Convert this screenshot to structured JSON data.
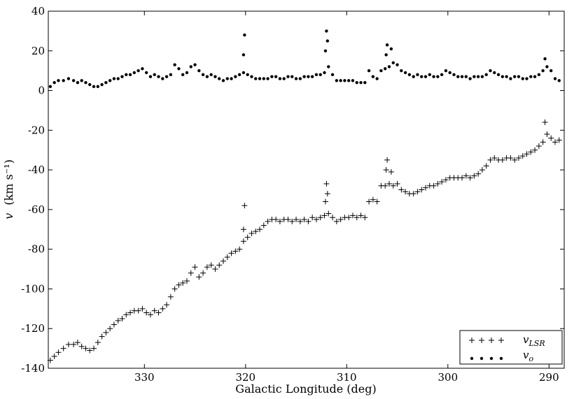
{
  "chart_data": {
    "type": "scatter",
    "title": "",
    "xlabel": "Galactic Longitude (deg)",
    "ylabel": "v",
    "ylabel_unit": "(km s⁻¹)",
    "xlim": [
      339.5,
      288.5
    ],
    "ylim": [
      -140,
      40
    ],
    "x_reversed": true,
    "grid": false,
    "legend_position": "bottom-right",
    "x_ticks": [
      330,
      320,
      310,
      300,
      290
    ],
    "y_ticks": [
      -140,
      -120,
      -100,
      -80,
      -60,
      -40,
      -20,
      0,
      20,
      40
    ],
    "series": [
      {
        "name": "v_LSR",
        "marker": "plus",
        "color": "#000000",
        "points": [
          [
            339.3,
            -136
          ],
          [
            338.9,
            -134
          ],
          [
            338.5,
            -132
          ],
          [
            338.0,
            -130
          ],
          [
            337.5,
            -128
          ],
          [
            337.0,
            -128
          ],
          [
            336.6,
            -127
          ],
          [
            336.2,
            -129
          ],
          [
            335.8,
            -130
          ],
          [
            335.4,
            -131
          ],
          [
            335.0,
            -130
          ],
          [
            334.6,
            -127
          ],
          [
            334.2,
            -124
          ],
          [
            333.8,
            -122
          ],
          [
            333.4,
            -120
          ],
          [
            333.0,
            -118
          ],
          [
            332.6,
            -116
          ],
          [
            332.2,
            -115
          ],
          [
            331.8,
            -113
          ],
          [
            331.4,
            -112
          ],
          [
            331.0,
            -111
          ],
          [
            330.6,
            -111
          ],
          [
            330.2,
            -110
          ],
          [
            329.8,
            -112
          ],
          [
            329.4,
            -113
          ],
          [
            329.0,
            -111
          ],
          [
            328.6,
            -112
          ],
          [
            328.2,
            -110
          ],
          [
            327.8,
            -108
          ],
          [
            327.4,
            -104
          ],
          [
            327.0,
            -100
          ],
          [
            326.6,
            -98
          ],
          [
            326.2,
            -97
          ],
          [
            325.8,
            -96
          ],
          [
            325.4,
            -92
          ],
          [
            325.0,
            -89
          ],
          [
            324.6,
            -94
          ],
          [
            324.2,
            -92
          ],
          [
            323.8,
            -89
          ],
          [
            323.4,
            -88
          ],
          [
            323.0,
            -90
          ],
          [
            322.6,
            -88
          ],
          [
            322.2,
            -86
          ],
          [
            321.8,
            -84
          ],
          [
            321.4,
            -82
          ],
          [
            321.0,
            -81
          ],
          [
            320.6,
            -80
          ],
          [
            320.2,
            -76
          ],
          [
            319.8,
            -74
          ],
          [
            319.4,
            -72
          ],
          [
            319.0,
            -71
          ],
          [
            318.6,
            -70
          ],
          [
            318.2,
            -68
          ],
          [
            317.8,
            -66
          ],
          [
            317.4,
            -65
          ],
          [
            317.0,
            -65
          ],
          [
            316.6,
            -66
          ],
          [
            316.2,
            -65
          ],
          [
            315.8,
            -65
          ],
          [
            315.4,
            -66
          ],
          [
            315.0,
            -65
          ],
          [
            314.6,
            -66
          ],
          [
            314.2,
            -65
          ],
          [
            313.8,
            -66
          ],
          [
            313.4,
            -64
          ],
          [
            313.0,
            -65
          ],
          [
            312.6,
            -64
          ],
          [
            312.2,
            -63
          ],
          [
            311.8,
            -62
          ],
          [
            311.4,
            -64
          ],
          [
            311.0,
            -66
          ],
          [
            310.6,
            -65
          ],
          [
            310.2,
            -64
          ],
          [
            309.8,
            -64
          ],
          [
            309.4,
            -63
          ],
          [
            309.0,
            -64
          ],
          [
            308.6,
            -63
          ],
          [
            308.2,
            -64
          ],
          [
            307.8,
            -56
          ],
          [
            307.4,
            -55
          ],
          [
            307.0,
            -56
          ],
          [
            306.6,
            -48
          ],
          [
            306.2,
            -48
          ],
          [
            305.8,
            -47
          ],
          [
            305.4,
            -48
          ],
          [
            305.0,
            -47
          ],
          [
            304.6,
            -50
          ],
          [
            304.2,
            -51
          ],
          [
            303.8,
            -52
          ],
          [
            303.4,
            -52
          ],
          [
            303.0,
            -51
          ],
          [
            302.6,
            -50
          ],
          [
            302.2,
            -49
          ],
          [
            301.8,
            -48
          ],
          [
            301.4,
            -48
          ],
          [
            301.0,
            -47
          ],
          [
            300.6,
            -46
          ],
          [
            300.2,
            -45
          ],
          [
            299.8,
            -44
          ],
          [
            299.4,
            -44
          ],
          [
            299.0,
            -44
          ],
          [
            298.6,
            -44
          ],
          [
            298.2,
            -43
          ],
          [
            297.8,
            -44
          ],
          [
            297.4,
            -43
          ],
          [
            297.0,
            -42
          ],
          [
            296.6,
            -40
          ],
          [
            296.2,
            -38
          ],
          [
            295.8,
            -35
          ],
          [
            295.4,
            -34
          ],
          [
            295.0,
            -35
          ],
          [
            294.6,
            -35
          ],
          [
            294.2,
            -34
          ],
          [
            293.8,
            -34
          ],
          [
            293.4,
            -35
          ],
          [
            293.0,
            -34
          ],
          [
            292.6,
            -33
          ],
          [
            292.2,
            -32
          ],
          [
            291.8,
            -31
          ],
          [
            291.4,
            -30
          ],
          [
            291.0,
            -28
          ],
          [
            290.6,
            -26
          ],
          [
            290.2,
            -22
          ],
          [
            289.8,
            -24
          ],
          [
            289.4,
            -26
          ],
          [
            289.0,
            -25
          ],
          [
            320.1,
            -58
          ],
          [
            320.2,
            -70
          ],
          [
            312.0,
            -47
          ],
          [
            311.9,
            -52
          ],
          [
            312.1,
            -56
          ],
          [
            306.0,
            -35
          ],
          [
            306.1,
            -40
          ],
          [
            305.6,
            -41
          ],
          [
            290.4,
            -16
          ]
        ]
      },
      {
        "name": "v_o",
        "marker": "dot",
        "color": "#000000",
        "points": [
          [
            339.3,
            2
          ],
          [
            338.9,
            4
          ],
          [
            338.5,
            5
          ],
          [
            338.0,
            5
          ],
          [
            337.5,
            6
          ],
          [
            337.0,
            5
          ],
          [
            336.6,
            4
          ],
          [
            336.2,
            5
          ],
          [
            335.8,
            4
          ],
          [
            335.4,
            3
          ],
          [
            335.0,
            2
          ],
          [
            334.6,
            2
          ],
          [
            334.2,
            3
          ],
          [
            333.8,
            4
          ],
          [
            333.4,
            5
          ],
          [
            333.0,
            6
          ],
          [
            332.6,
            6
          ],
          [
            332.2,
            7
          ],
          [
            331.8,
            8
          ],
          [
            331.4,
            8
          ],
          [
            331.0,
            9
          ],
          [
            330.6,
            10
          ],
          [
            330.2,
            11
          ],
          [
            329.8,
            9
          ],
          [
            329.4,
            7
          ],
          [
            329.0,
            8
          ],
          [
            328.6,
            7
          ],
          [
            328.2,
            6
          ],
          [
            327.8,
            7
          ],
          [
            327.4,
            8
          ],
          [
            327.0,
            13
          ],
          [
            326.6,
            11
          ],
          [
            326.2,
            8
          ],
          [
            325.8,
            9
          ],
          [
            325.4,
            12
          ],
          [
            325.0,
            13
          ],
          [
            324.6,
            10
          ],
          [
            324.2,
            8
          ],
          [
            323.8,
            7
          ],
          [
            323.4,
            8
          ],
          [
            323.0,
            7
          ],
          [
            322.6,
            6
          ],
          [
            322.2,
            5
          ],
          [
            321.8,
            6
          ],
          [
            321.4,
            6
          ],
          [
            321.0,
            7
          ],
          [
            320.6,
            8
          ],
          [
            320.2,
            9
          ],
          [
            319.8,
            8
          ],
          [
            319.4,
            7
          ],
          [
            319.0,
            6
          ],
          [
            318.6,
            6
          ],
          [
            318.2,
            6
          ],
          [
            317.8,
            6
          ],
          [
            317.4,
            7
          ],
          [
            317.0,
            7
          ],
          [
            316.6,
            6
          ],
          [
            316.2,
            6
          ],
          [
            315.8,
            7
          ],
          [
            315.4,
            7
          ],
          [
            315.0,
            6
          ],
          [
            314.6,
            6
          ],
          [
            314.2,
            7
          ],
          [
            313.8,
            7
          ],
          [
            313.4,
            7
          ],
          [
            313.0,
            8
          ],
          [
            312.6,
            8
          ],
          [
            312.2,
            9
          ],
          [
            311.8,
            12
          ],
          [
            311.4,
            8
          ],
          [
            311.0,
            5
          ],
          [
            310.6,
            5
          ],
          [
            310.2,
            5
          ],
          [
            309.8,
            5
          ],
          [
            309.4,
            5
          ],
          [
            309.0,
            4
          ],
          [
            308.6,
            4
          ],
          [
            308.2,
            4
          ],
          [
            307.8,
            10
          ],
          [
            307.4,
            7
          ],
          [
            307.0,
            6
          ],
          [
            306.6,
            10
          ],
          [
            306.2,
            11
          ],
          [
            305.8,
            12
          ],
          [
            305.4,
            14
          ],
          [
            305.0,
            13
          ],
          [
            304.6,
            10
          ],
          [
            304.2,
            9
          ],
          [
            303.8,
            8
          ],
          [
            303.4,
            7
          ],
          [
            303.0,
            8
          ],
          [
            302.6,
            7
          ],
          [
            302.2,
            7
          ],
          [
            301.8,
            8
          ],
          [
            301.4,
            7
          ],
          [
            301.0,
            7
          ],
          [
            300.6,
            8
          ],
          [
            300.2,
            10
          ],
          [
            299.8,
            9
          ],
          [
            299.4,
            8
          ],
          [
            299.0,
            7
          ],
          [
            298.6,
            7
          ],
          [
            298.2,
            7
          ],
          [
            297.8,
            6
          ],
          [
            297.4,
            7
          ],
          [
            297.0,
            7
          ],
          [
            296.6,
            7
          ],
          [
            296.2,
            8
          ],
          [
            295.8,
            10
          ],
          [
            295.4,
            9
          ],
          [
            295.0,
            8
          ],
          [
            294.6,
            7
          ],
          [
            294.2,
            7
          ],
          [
            293.8,
            6
          ],
          [
            293.4,
            7
          ],
          [
            293.0,
            7
          ],
          [
            292.6,
            6
          ],
          [
            292.2,
            6
          ],
          [
            291.8,
            7
          ],
          [
            291.4,
            7
          ],
          [
            291.0,
            8
          ],
          [
            290.6,
            10
          ],
          [
            290.2,
            12
          ],
          [
            289.8,
            10
          ],
          [
            289.4,
            6
          ],
          [
            289.0,
            5
          ],
          [
            320.1,
            28
          ],
          [
            320.2,
            18
          ],
          [
            312.0,
            30
          ],
          [
            311.9,
            25
          ],
          [
            312.1,
            20
          ],
          [
            306.0,
            23
          ],
          [
            306.1,
            18
          ],
          [
            305.6,
            21
          ],
          [
            290.4,
            16
          ]
        ]
      }
    ],
    "legend": [
      {
        "label": "v",
        "sub": "LSR",
        "marker": "plus"
      },
      {
        "label": "v",
        "sub": "o",
        "marker": "dot"
      }
    ]
  }
}
